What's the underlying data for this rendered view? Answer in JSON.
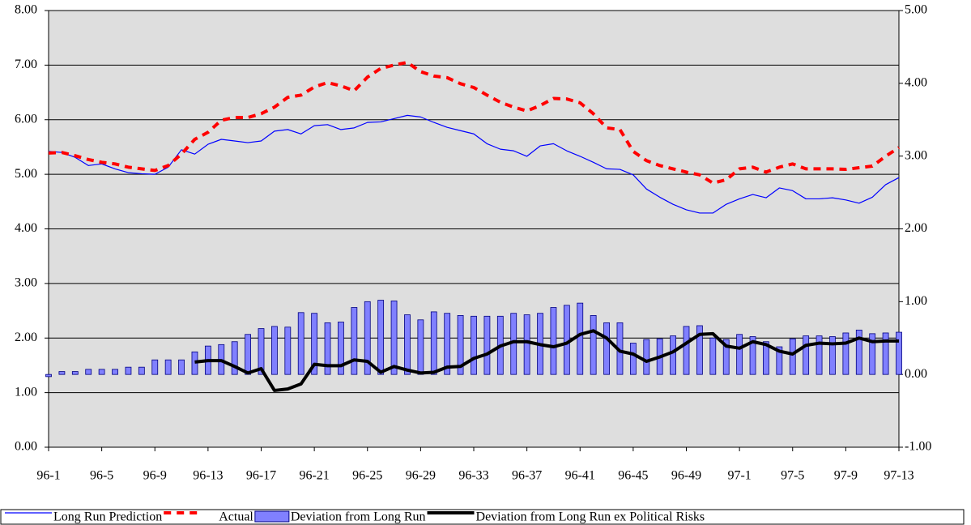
{
  "chart_data": {
    "type": "combo",
    "categories": [
      "96-1",
      null,
      null,
      null,
      "96-5",
      null,
      null,
      null,
      "96-9",
      null,
      null,
      null,
      "96-13",
      null,
      null,
      null,
      "96-17",
      null,
      null,
      null,
      "96-21",
      null,
      null,
      null,
      "96-25",
      null,
      null,
      null,
      "96-29",
      null,
      null,
      null,
      "96-33",
      null,
      null,
      null,
      "96-37",
      null,
      null,
      null,
      "96-41",
      null,
      null,
      null,
      "96-45",
      null,
      null,
      null,
      "96-49",
      null,
      null,
      null,
      "97-1",
      null,
      null,
      null,
      "97-5",
      null,
      null,
      null,
      "97-9",
      null,
      null,
      null,
      "97-13"
    ],
    "ylim": [
      0,
      8
    ],
    "yticks": [
      {
        "value": 0,
        "label": "0.00"
      },
      {
        "value": 1,
        "label": "1.00"
      },
      {
        "value": 2,
        "label": "2.00"
      },
      {
        "value": 3,
        "label": "3.00"
      },
      {
        "value": 4,
        "label": "4.00"
      },
      {
        "value": 5,
        "label": "5.00"
      },
      {
        "value": 6,
        "label": "6.00"
      },
      {
        "value": 7,
        "label": "7.00"
      },
      {
        "value": 8,
        "label": "8.00"
      }
    ],
    "y2lim": [
      -1,
      5
    ],
    "y2ticks": [
      {
        "value": -1,
        "label": "-1.00"
      },
      {
        "value": 0,
        "label": "0.00"
      },
      {
        "value": 1,
        "label": "1.00"
      },
      {
        "value": 2,
        "label": "2.00"
      },
      {
        "value": 3,
        "label": "3.00"
      },
      {
        "value": 4,
        "label": "4.00"
      },
      {
        "value": 5,
        "label": "5.00"
      }
    ],
    "grid": true,
    "legend": "bottom",
    "series": [
      {
        "name": "Long Run Prediction",
        "type": "line",
        "color": "#0000ff",
        "values": [
          5.42,
          5.4,
          5.31,
          5.16,
          5.19,
          5.1,
          5.03,
          5.01,
          5.0,
          5.13,
          5.45,
          5.37,
          5.55,
          5.64,
          5.61,
          5.58,
          5.61,
          5.79,
          5.82,
          5.74,
          5.89,
          5.91,
          5.82,
          5.85,
          5.95,
          5.96,
          6.02,
          6.08,
          6.05,
          5.95,
          5.86,
          5.8,
          5.74,
          5.56,
          5.46,
          5.43,
          5.33,
          5.52,
          5.56,
          5.43,
          5.33,
          5.22,
          5.1,
          5.09,
          4.99,
          4.73,
          4.58,
          4.45,
          4.35,
          4.29,
          4.29,
          4.45,
          4.55,
          4.63,
          4.57,
          4.75,
          4.7,
          4.55,
          4.55,
          4.57,
          4.53,
          4.47,
          4.58,
          4.81,
          4.94
        ]
      },
      {
        "name": "Actual",
        "type": "line",
        "dashed": true,
        "color": "#ff0000",
        "values": [
          5.39,
          5.4,
          5.34,
          5.27,
          5.22,
          5.19,
          5.13,
          5.1,
          5.07,
          5.16,
          5.37,
          5.64,
          5.77,
          5.99,
          6.04,
          6.04,
          6.11,
          6.23,
          6.41,
          6.45,
          6.6,
          6.68,
          6.62,
          6.53,
          6.78,
          6.94,
          7.0,
          7.05,
          6.88,
          6.8,
          6.77,
          6.66,
          6.59,
          6.45,
          6.32,
          6.23,
          6.16,
          6.26,
          6.39,
          6.38,
          6.31,
          6.11,
          5.85,
          5.82,
          5.42,
          5.25,
          5.16,
          5.1,
          5.04,
          4.99,
          4.84,
          4.9,
          5.1,
          5.13,
          5.04,
          5.13,
          5.19,
          5.1,
          5.1,
          5.1,
          5.09,
          5.12,
          5.15,
          5.33,
          5.49
        ]
      },
      {
        "name": "Deviation from Long Run",
        "type": "bar",
        "axis": "y2",
        "color": "#8080ff",
        "values": [
          -0.03,
          0.04,
          0.04,
          0.07,
          0.07,
          0.07,
          0.1,
          0.1,
          0.2,
          0.2,
          0.2,
          0.31,
          0.39,
          0.41,
          0.45,
          0.55,
          0.63,
          0.66,
          0.65,
          0.85,
          0.84,
          0.71,
          0.72,
          0.92,
          1.0,
          1.02,
          1.01,
          0.82,
          0.75,
          0.86,
          0.84,
          0.81,
          0.8,
          0.8,
          0.8,
          0.84,
          0.82,
          0.84,
          0.92,
          0.95,
          0.98,
          0.81,
          0.71,
          0.71,
          0.43,
          0.48,
          0.49,
          0.53,
          0.66,
          0.67,
          0.5,
          0.48,
          0.55,
          0.52,
          0.45,
          0.38,
          0.49,
          0.53,
          0.53,
          0.52,
          0.57,
          0.61,
          0.56,
          0.57,
          0.58
        ]
      },
      {
        "name": "Deviation from Long Run ex Political Risks",
        "type": "line",
        "axis": "y2",
        "color": "#000000",
        "values": [
          null,
          null,
          null,
          null,
          null,
          null,
          null,
          null,
          null,
          null,
          null,
          0.17,
          0.19,
          0.19,
          0.11,
          0.02,
          0.08,
          -0.22,
          -0.2,
          -0.13,
          0.14,
          0.12,
          0.12,
          0.2,
          0.18,
          0.03,
          0.11,
          0.06,
          0.02,
          0.03,
          0.1,
          0.11,
          0.22,
          0.28,
          0.39,
          0.45,
          0.45,
          0.41,
          0.38,
          0.43,
          0.55,
          0.6,
          0.5,
          0.32,
          0.28,
          0.18,
          0.24,
          0.31,
          0.43,
          0.55,
          0.56,
          0.39,
          0.36,
          0.45,
          0.41,
          0.32,
          0.28,
          0.4,
          0.43,
          0.42,
          0.43,
          0.5,
          0.45,
          0.46,
          0.46
        ]
      }
    ]
  }
}
